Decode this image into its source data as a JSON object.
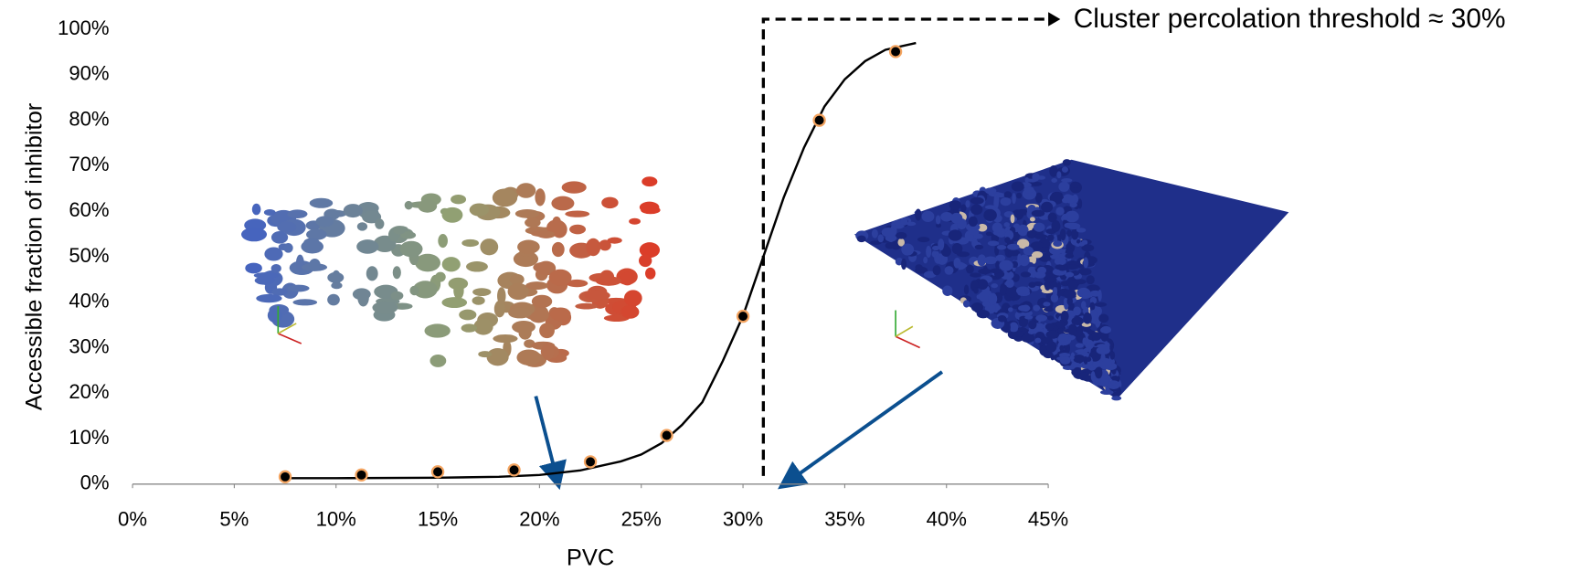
{
  "chart_data": {
    "type": "scatter",
    "x_label": "PVC",
    "y_label": "Accessible fraction of inhibitor",
    "xlim": [
      0,
      45
    ],
    "ylim": [
      0,
      100
    ],
    "xticks": [
      {
        "value": 0,
        "label": "0%"
      },
      {
        "value": 5,
        "label": "5%"
      },
      {
        "value": 10,
        "label": "10%"
      },
      {
        "value": 15,
        "label": "15%"
      },
      {
        "value": 20,
        "label": "20%"
      },
      {
        "value": 25,
        "label": "25%"
      },
      {
        "value": 30,
        "label": "30%"
      },
      {
        "value": 35,
        "label": "35%"
      },
      {
        "value": 40,
        "label": "40%"
      },
      {
        "value": 45,
        "label": "45%"
      }
    ],
    "yticks": [
      {
        "value": 0,
        "label": "0%"
      },
      {
        "value": 10,
        "label": "10%"
      },
      {
        "value": 20,
        "label": "20%"
      },
      {
        "value": 30,
        "label": "30%"
      },
      {
        "value": 40,
        "label": "40%"
      },
      {
        "value": 50,
        "label": "50%"
      },
      {
        "value": 60,
        "label": "60%"
      },
      {
        "value": 70,
        "label": "70%"
      },
      {
        "value": 80,
        "label": "80%"
      },
      {
        "value": 90,
        "label": "90%"
      },
      {
        "value": 100,
        "label": "100%"
      }
    ],
    "series": [
      {
        "kind": "points",
        "color": "#f4a460",
        "x": [
          7.5,
          11.25,
          15,
          18.75,
          22.5,
          26.25,
          30,
          33.75,
          37.5
        ],
        "values": [
          1.6,
          2,
          2.7,
          3.1,
          4.9,
          10.7,
          36.9,
          80,
          95.1
        ]
      },
      {
        "kind": "line",
        "color": "#000000",
        "x": [
          7.5,
          10,
          15,
          18,
          20,
          22,
          24,
          25,
          26,
          27,
          28,
          29,
          30,
          31,
          32,
          33,
          34,
          35,
          36,
          37,
          38.5
        ],
        "values": [
          1.3,
          1.3,
          1.4,
          1.6,
          2,
          3,
          5,
          6.5,
          9,
          13,
          18,
          27,
          37,
          50,
          63,
          74,
          83,
          89,
          93,
          95.5,
          97
        ]
      }
    ],
    "threshold_x": 31,
    "annotation": "Cluster percolation threshold ≈ 30%"
  }
}
